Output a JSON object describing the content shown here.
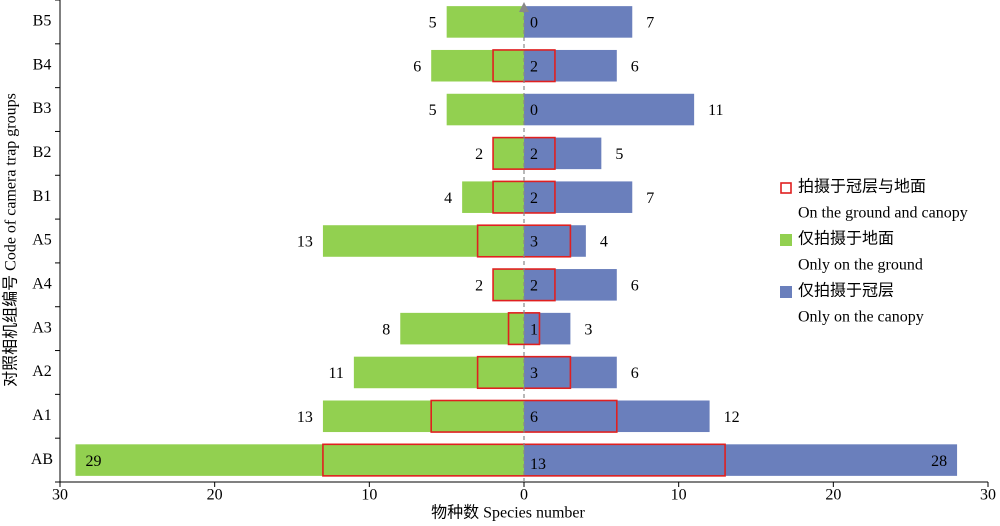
{
  "chart_data": {
    "type": "diverging-bar",
    "x_label": "物种数 Species number",
    "y_label": "对照相机组编号 Code of camera trap groups",
    "categories": [
      "AB",
      "A1",
      "A2",
      "A3",
      "A4",
      "A5",
      "B1",
      "B2",
      "B3",
      "B4",
      "B5"
    ],
    "xlim": [
      -30,
      30
    ],
    "xticks": [
      {
        "value": -30,
        "label": "30"
      },
      {
        "value": -20,
        "label": "20"
      },
      {
        "value": -10,
        "label": "10"
      },
      0,
      10,
      20,
      30
    ],
    "series": [
      {
        "name": "拍摄于冠层与地面",
        "name_en": "On the ground and canopy",
        "color": "#e02020",
        "style": "outline-both-sides",
        "values": [
          13,
          6,
          3,
          1,
          2,
          3,
          2,
          2,
          0,
          2,
          0
        ]
      },
      {
        "name": "仅拍摄于地面",
        "name_en": "Only on the ground",
        "color": "#92d050",
        "style": "bar",
        "values": [
          -29,
          -13,
          -11,
          -8,
          -2,
          -13,
          -4,
          -2,
          -5,
          -6,
          -5
        ],
        "value_labels": [
          "29",
          "13",
          "11",
          "8",
          "2",
          "13",
          "4",
          "2",
          "5",
          "6",
          "5"
        ]
      },
      {
        "name": "仅拍摄于冠层",
        "name_en": "Only on the canopy",
        "color": "#6a7fbc",
        "style": "bar",
        "values": [
          28,
          12,
          6,
          3,
          6,
          4,
          7,
          5,
          11,
          6,
          7
        ]
      }
    ]
  }
}
